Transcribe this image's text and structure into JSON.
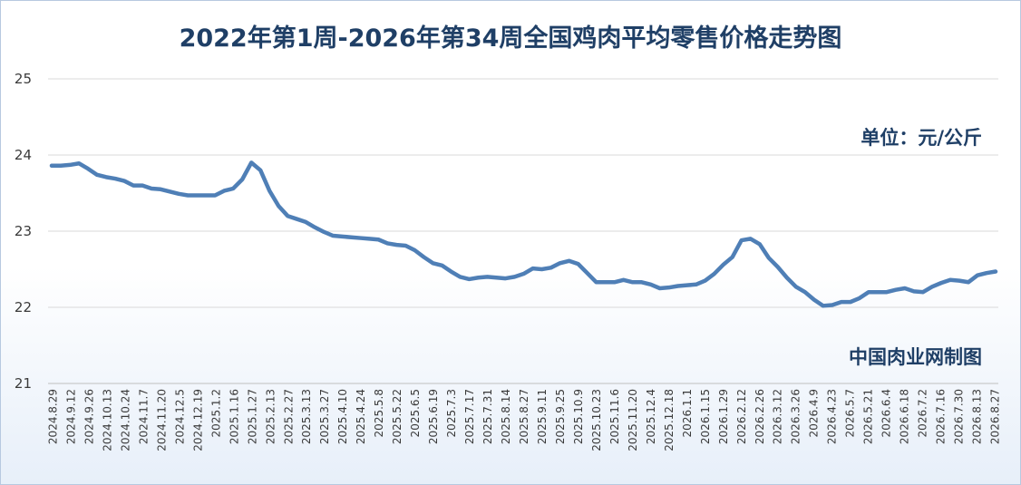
{
  "chart_data": {
    "type": "line",
    "title": "2022年第1周-2026年第34周全国鸡肉平均零售价格走势图",
    "unit_label": "单位：元/公斤",
    "source_label": "中国肉业网制图",
    "line_color": "#4f7fb6",
    "ylim": [
      21,
      25
    ],
    "yticks": [
      "25",
      "24",
      "23",
      "22",
      "21"
    ],
    "grid": "horizontal",
    "x_tick_labels": [
      "2024.8.29",
      "2024.9.12",
      "2024.9.26",
      "2024.10.13",
      "2024.10.24",
      "2024.11.7",
      "2024.11.20",
      "2024.12.5",
      "2024.12.19",
      "2025.1.2",
      "2025.1.16",
      "2025.1.27",
      "2025.2.13",
      "2025.2.27",
      "2025.3.13",
      "2025.3.27",
      "2025.4.10",
      "2025.4.24",
      "2025.5.8",
      "2025.5.22",
      "2025.6.5",
      "2025.6.19",
      "2025.7.3",
      "2025.7.17",
      "2025.7.31",
      "2025.8.14",
      "2025.8.27",
      "2025.9.11",
      "2025.9.25",
      "2025.10.9",
      "2025.10.23",
      "2025.11.6",
      "2025.11.20",
      "2025.12.4",
      "2025.12.18",
      "2026.1.1",
      "2026.1.15",
      "2026.1.29",
      "2026.2.12",
      "2026.2.26",
      "2026.3.12",
      "2026.3.26",
      "2026.4.9",
      "2026.4.23",
      "2026.5.7",
      "2026.5.21",
      "2026.6.4",
      "2026.6.18",
      "2026.7.2",
      "2026.7.16",
      "2026.7.30",
      "2026.8.13",
      "2026.8.27"
    ],
    "series": [
      {
        "values": [
          23.86,
          23.86,
          23.87,
          23.89,
          23.82,
          23.74,
          23.71,
          23.69,
          23.66,
          23.6,
          23.6,
          23.56,
          23.55,
          23.52,
          23.49,
          23.47,
          23.47,
          23.47,
          23.47,
          23.53,
          23.56,
          23.68,
          23.9,
          23.8,
          23.53,
          23.33,
          23.2,
          23.16,
          23.12,
          23.05,
          22.99,
          22.94,
          22.93,
          22.92,
          22.91,
          22.9,
          22.89,
          22.84,
          22.82,
          22.81,
          22.75,
          22.66,
          22.58,
          22.55,
          22.47,
          22.4,
          22.37,
          22.39,
          22.4,
          22.39,
          22.38,
          22.4,
          22.44,
          22.51,
          22.5,
          22.52,
          22.58,
          22.61,
          22.57,
          22.45,
          22.33,
          22.33,
          22.33,
          22.36,
          22.33,
          22.33,
          22.3,
          22.25,
          22.26,
          22.28,
          22.29,
          22.3,
          22.35,
          22.44,
          22.56,
          22.66,
          22.88,
          22.9,
          22.83,
          22.65,
          22.53,
          22.39,
          22.27,
          22.2,
          22.1,
          22.02,
          22.03,
          22.07,
          22.07,
          22.12,
          22.2,
          22.2,
          22.2,
          22.23,
          22.25,
          22.21,
          22.2,
          22.27,
          22.32,
          22.36,
          22.35,
          22.33,
          22.42,
          22.45,
          22.47
        ]
      }
    ]
  }
}
